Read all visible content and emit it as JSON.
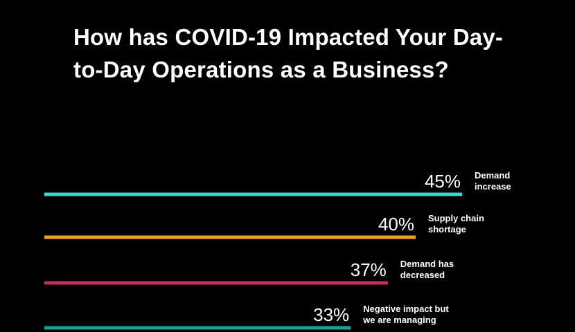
{
  "chart_data": {
    "type": "bar",
    "orientation": "horizontal",
    "title": "How has COVID-19 Impacted Your Day-to-Day Operations as a Business?",
    "categories": [
      "Demand increase",
      "Supply chain shortage",
      "Demand has decreased",
      "Negative impact but we are managing"
    ],
    "values": [
      45,
      40,
      37,
      33
    ],
    "value_labels": [
      "45%",
      "40%",
      "37%",
      "33%"
    ],
    "category_lines": [
      [
        "Demand",
        "increase"
      ],
      [
        "Supply chain",
        "shortage"
      ],
      [
        "Demand has",
        "decreased"
      ],
      [
        "Negative impact but",
        "we are managing"
      ]
    ],
    "colors": [
      "#3fd6cd",
      "#f0a02a",
      "#d2285a",
      "#1aa39c"
    ],
    "xlim": [
      0,
      45
    ],
    "background": "#000000",
    "text_color": "#ffffff",
    "grid": false,
    "legend": "none"
  }
}
